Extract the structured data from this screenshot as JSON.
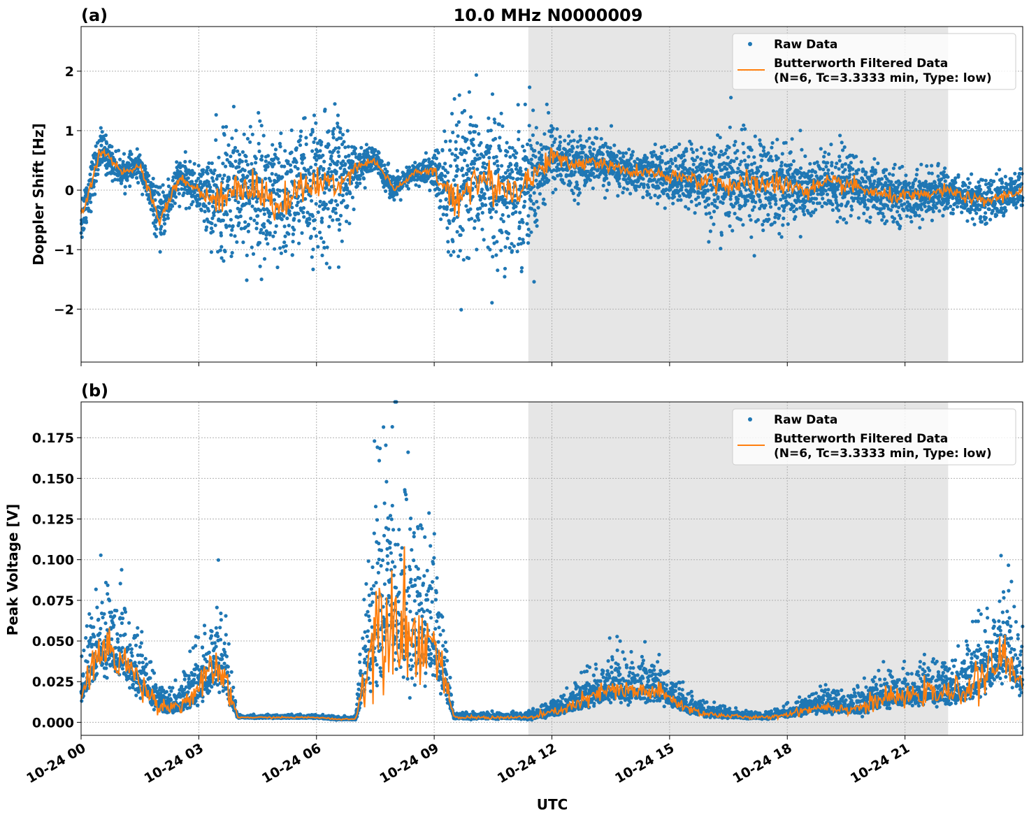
{
  "chart_data": [
    {
      "type": "scatter",
      "panel_label": "(a)",
      "title": "10.0 MHz N0000009",
      "xlabel": "",
      "ylabel": "Doppler Shift [Hz]",
      "xlim_hours": [
        0,
        24
      ],
      "ylim": [
        -2.89,
        2.75
      ],
      "yticks": [
        2,
        1,
        0,
        -1,
        -2
      ],
      "ytick_labels": [
        "2",
        "1",
        "0",
        "−1",
        "−2"
      ],
      "grid": true,
      "shaded_region_hours": [
        11.4,
        22.1
      ],
      "legend": {
        "placement": "top-right",
        "entries": [
          "Raw Data",
          "Butterworth Filtered Data",
          "(N=6, Tc=3.3333 min, Type: low)"
        ]
      },
      "hours": [
        0,
        0.5,
        1,
        1.5,
        2,
        2.5,
        3,
        3.5,
        4,
        4.5,
        5,
        5.5,
        6,
        6.5,
        7,
        7.5,
        8,
        8.5,
        9,
        9.5,
        10,
        10.5,
        11,
        11.5,
        12,
        12.5,
        13,
        13.5,
        14,
        14.5,
        15,
        15.5,
        16,
        16.5,
        17,
        17.5,
        18,
        18.5,
        19,
        19.5,
        20,
        20.5,
        21,
        21.5,
        22,
        22.5,
        23,
        23.5,
        24
      ],
      "series": [
        {
          "name": "Butterworth Filtered Data",
          "color": "#ff7f0e",
          "values": [
            -0.5,
            0.7,
            0.3,
            0.4,
            -0.5,
            0.2,
            0.0,
            -0.2,
            0.1,
            0.0,
            -0.3,
            0.0,
            0.1,
            0.1,
            0.4,
            0.5,
            0.0,
            0.3,
            0.3,
            -0.2,
            0.2,
            0.1,
            0.0,
            0.2,
            0.6,
            0.4,
            0.5,
            0.4,
            0.3,
            0.3,
            0.2,
            0.2,
            0.15,
            0.1,
            0.1,
            0.1,
            0.1,
            0.0,
            0.1,
            0.1,
            0.0,
            -0.1,
            -0.1,
            -0.1,
            0.0,
            -0.1,
            -0.2,
            -0.1,
            0.0
          ]
        },
        {
          "name": "Raw Data",
          "color": "#1f77b4",
          "spread": [
            0.4,
            0.3,
            0.2,
            0.2,
            0.4,
            0.3,
            0.3,
            0.9,
            1.0,
            1.0,
            1.0,
            0.9,
            1.0,
            1.1,
            0.3,
            0.2,
            0.2,
            0.15,
            0.3,
            1.3,
            1.0,
            1.1,
            1.0,
            1.0,
            0.5,
            0.4,
            0.4,
            0.35,
            0.3,
            0.35,
            0.4,
            0.5,
            0.6,
            0.7,
            0.7,
            0.7,
            0.6,
            0.5,
            0.5,
            0.5,
            0.4,
            0.4,
            0.35,
            0.35,
            0.3,
            0.3,
            0.3,
            0.3,
            0.3
          ]
        }
      ]
    },
    {
      "type": "scatter",
      "panel_label": "(b)",
      "xlabel": "UTC",
      "ylabel": "Peak Voltage [V]",
      "xlim_hours": [
        0,
        24
      ],
      "ylim": [
        -0.008,
        0.197
      ],
      "yticks": [
        0.175,
        0.15,
        0.125,
        0.1,
        0.075,
        0.05,
        0.025,
        0.0
      ],
      "ytick_labels": [
        "0.175",
        "0.150",
        "0.125",
        "0.100",
        "0.075",
        "0.050",
        "0.025",
        "0.000"
      ],
      "xticks_hours": [
        0,
        3,
        6,
        9,
        12,
        15,
        18,
        21
      ],
      "xtick_labels": [
        "10-24 00",
        "10-24 03",
        "10-24 06",
        "10-24 09",
        "10-24 12",
        "10-24 15",
        "10-24 18",
        "10-24 21"
      ],
      "grid": true,
      "shaded_region_hours": [
        11.4,
        22.1
      ],
      "legend": {
        "placement": "top-right",
        "entries": [
          "Raw Data",
          "Butterworth Filtered Data",
          "(N=6, Tc=3.3333 min, Type: low)"
        ]
      },
      "hours": [
        0,
        0.5,
        1,
        1.5,
        2,
        2.5,
        3,
        3.5,
        4,
        4.5,
        5,
        5.5,
        6,
        6.5,
        7,
        7.5,
        8,
        8.5,
        9,
        9.5,
        10,
        10.5,
        11,
        11.5,
        12,
        12.5,
        13,
        13.5,
        14,
        14.5,
        15,
        15.5,
        16,
        16.5,
        17,
        17.5,
        18,
        18.5,
        19,
        19.5,
        20,
        20.5,
        21,
        21.5,
        22,
        22.5,
        23,
        23.5,
        24
      ],
      "series": [
        {
          "name": "Butterworth Filtered Data",
          "color": "#ff7f0e",
          "values": [
            0.018,
            0.045,
            0.04,
            0.025,
            0.01,
            0.01,
            0.02,
            0.035,
            0.003,
            0.003,
            0.003,
            0.003,
            0.003,
            0.002,
            0.002,
            0.06,
            0.07,
            0.05,
            0.05,
            0.003,
            0.003,
            0.003,
            0.003,
            0.003,
            0.006,
            0.01,
            0.015,
            0.02,
            0.018,
            0.02,
            0.015,
            0.008,
            0.005,
            0.004,
            0.003,
            0.003,
            0.005,
            0.008,
            0.01,
            0.008,
            0.01,
            0.015,
            0.015,
            0.018,
            0.017,
            0.02,
            0.028,
            0.04,
            0.025
          ]
        },
        {
          "name": "Raw Data",
          "color": "#1f77b4",
          "spread": [
            0.015,
            0.03,
            0.03,
            0.02,
            0.008,
            0.01,
            0.02,
            0.03,
            0.001,
            0.001,
            0.001,
            0.001,
            0.001,
            0.001,
            0.001,
            0.07,
            0.08,
            0.06,
            0.04,
            0.002,
            0.002,
            0.002,
            0.002,
            0.003,
            0.005,
            0.008,
            0.012,
            0.015,
            0.015,
            0.015,
            0.01,
            0.006,
            0.004,
            0.003,
            0.002,
            0.002,
            0.004,
            0.006,
            0.008,
            0.006,
            0.01,
            0.012,
            0.012,
            0.014,
            0.014,
            0.018,
            0.025,
            0.03,
            0.02
          ]
        }
      ]
    }
  ]
}
